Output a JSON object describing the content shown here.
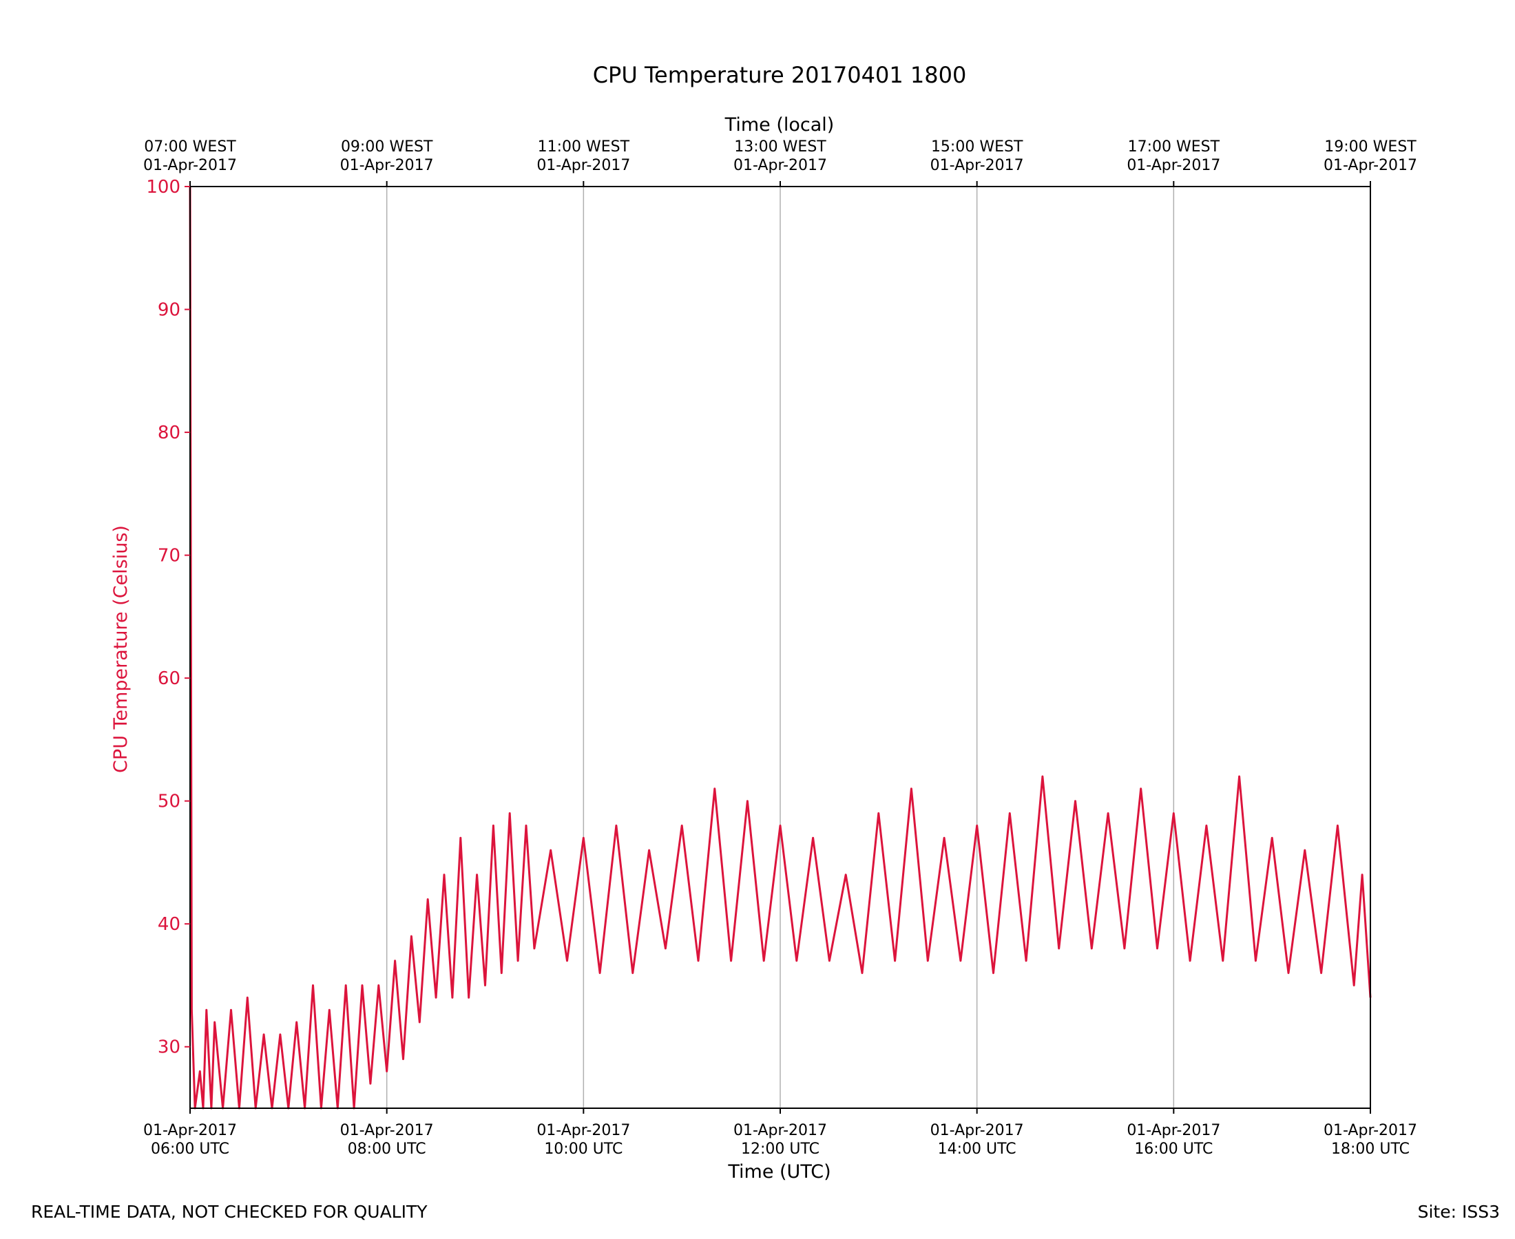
{
  "chart_data": {
    "type": "line",
    "title": "CPU Temperature 20170401 1800",
    "xlabel": "Time (UTC)",
    "x2label": "Time (local)",
    "ylabel": "CPU Temperature (Celsius)",
    "xlim": [
      "2017-04-01 06:00",
      "2017-04-01 18:00"
    ],
    "ylim": [
      25,
      100
    ],
    "yticks": [
      30,
      40,
      50,
      60,
      70,
      80,
      90,
      100
    ],
    "xticks": [
      {
        "date": "01-Apr-2017",
        "time": "06:00 UTC"
      },
      {
        "date": "01-Apr-2017",
        "time": "08:00 UTC"
      },
      {
        "date": "01-Apr-2017",
        "time": "10:00 UTC"
      },
      {
        "date": "01-Apr-2017",
        "time": "12:00 UTC"
      },
      {
        "date": "01-Apr-2017",
        "time": "14:00 UTC"
      },
      {
        "date": "01-Apr-2017",
        "time": "16:00 UTC"
      },
      {
        "date": "01-Apr-2017",
        "time": "18:00 UTC"
      }
    ],
    "x2ticks": [
      {
        "time": "07:00 WEST",
        "date": "01-Apr-2017"
      },
      {
        "time": "09:00 WEST",
        "date": "01-Apr-2017"
      },
      {
        "time": "11:00 WEST",
        "date": "01-Apr-2017"
      },
      {
        "time": "13:00 WEST",
        "date": "01-Apr-2017"
      },
      {
        "time": "15:00 WEST",
        "date": "01-Apr-2017"
      },
      {
        "time": "17:00 WEST",
        "date": "01-Apr-2017"
      },
      {
        "time": "19:00 WEST",
        "date": "01-Apr-2017"
      }
    ],
    "grid": "vertical",
    "series": [
      {
        "color": "#dc143c",
        "x": [
          "06:00",
          "06:01",
          "06:03",
          "06:06",
          "06:08",
          "06:10",
          "06:13",
          "06:15",
          "06:20",
          "06:25",
          "06:30",
          "06:35",
          "06:40",
          "06:45",
          "06:50",
          "06:55",
          "07:00",
          "07:05",
          "07:10",
          "07:15",
          "07:20",
          "07:25",
          "07:30",
          "07:35",
          "07:40",
          "07:45",
          "07:50",
          "07:55",
          "08:00",
          "08:05",
          "08:10",
          "08:15",
          "08:20",
          "08:25",
          "08:30",
          "08:35",
          "08:40",
          "08:45",
          "08:50",
          "08:55",
          "09:00",
          "09:05",
          "09:10",
          "09:15",
          "09:20",
          "09:25",
          "09:30",
          "09:40",
          "09:50",
          "10:00",
          "10:10",
          "10:20",
          "10:30",
          "10:40",
          "10:50",
          "11:00",
          "11:10",
          "11:20",
          "11:30",
          "11:40",
          "11:50",
          "12:00",
          "12:10",
          "12:20",
          "12:30",
          "12:40",
          "12:50",
          "13:00",
          "13:10",
          "13:20",
          "13:30",
          "13:40",
          "13:50",
          "14:00",
          "14:10",
          "14:20",
          "14:30",
          "14:40",
          "14:50",
          "15:00",
          "15:10",
          "15:20",
          "15:30",
          "15:40",
          "15:50",
          "16:00",
          "16:10",
          "16:20",
          "16:30",
          "16:40",
          "16:50",
          "17:00",
          "17:10",
          "17:20",
          "17:30",
          "17:40",
          "17:50",
          "17:55",
          "18:00"
        ],
        "y": [
          100,
          33,
          25,
          28,
          25,
          33,
          25,
          32,
          25,
          33,
          25,
          34,
          25,
          31,
          25,
          31,
          25,
          32,
          25,
          35,
          25,
          33,
          25,
          35,
          25,
          35,
          27,
          35,
          28,
          37,
          29,
          39,
          32,
          42,
          34,
          44,
          34,
          47,
          34,
          44,
          35,
          48,
          36,
          49,
          37,
          48,
          38,
          46,
          37,
          47,
          36,
          48,
          36,
          46,
          38,
          48,
          37,
          51,
          37,
          50,
          37,
          48,
          37,
          47,
          37,
          44,
          36,
          49,
          37,
          51,
          37,
          47,
          37,
          48,
          36,
          49,
          37,
          52,
          38,
          50,
          38,
          49,
          38,
          51,
          38,
          49,
          37,
          48,
          37,
          52,
          37,
          47,
          36,
          46,
          36,
          48,
          35,
          44,
          34
        ]
      }
    ]
  },
  "footer": {
    "left": "REAL-TIME DATA, NOT CHECKED FOR QUALITY",
    "right": "Site: ISS3"
  }
}
